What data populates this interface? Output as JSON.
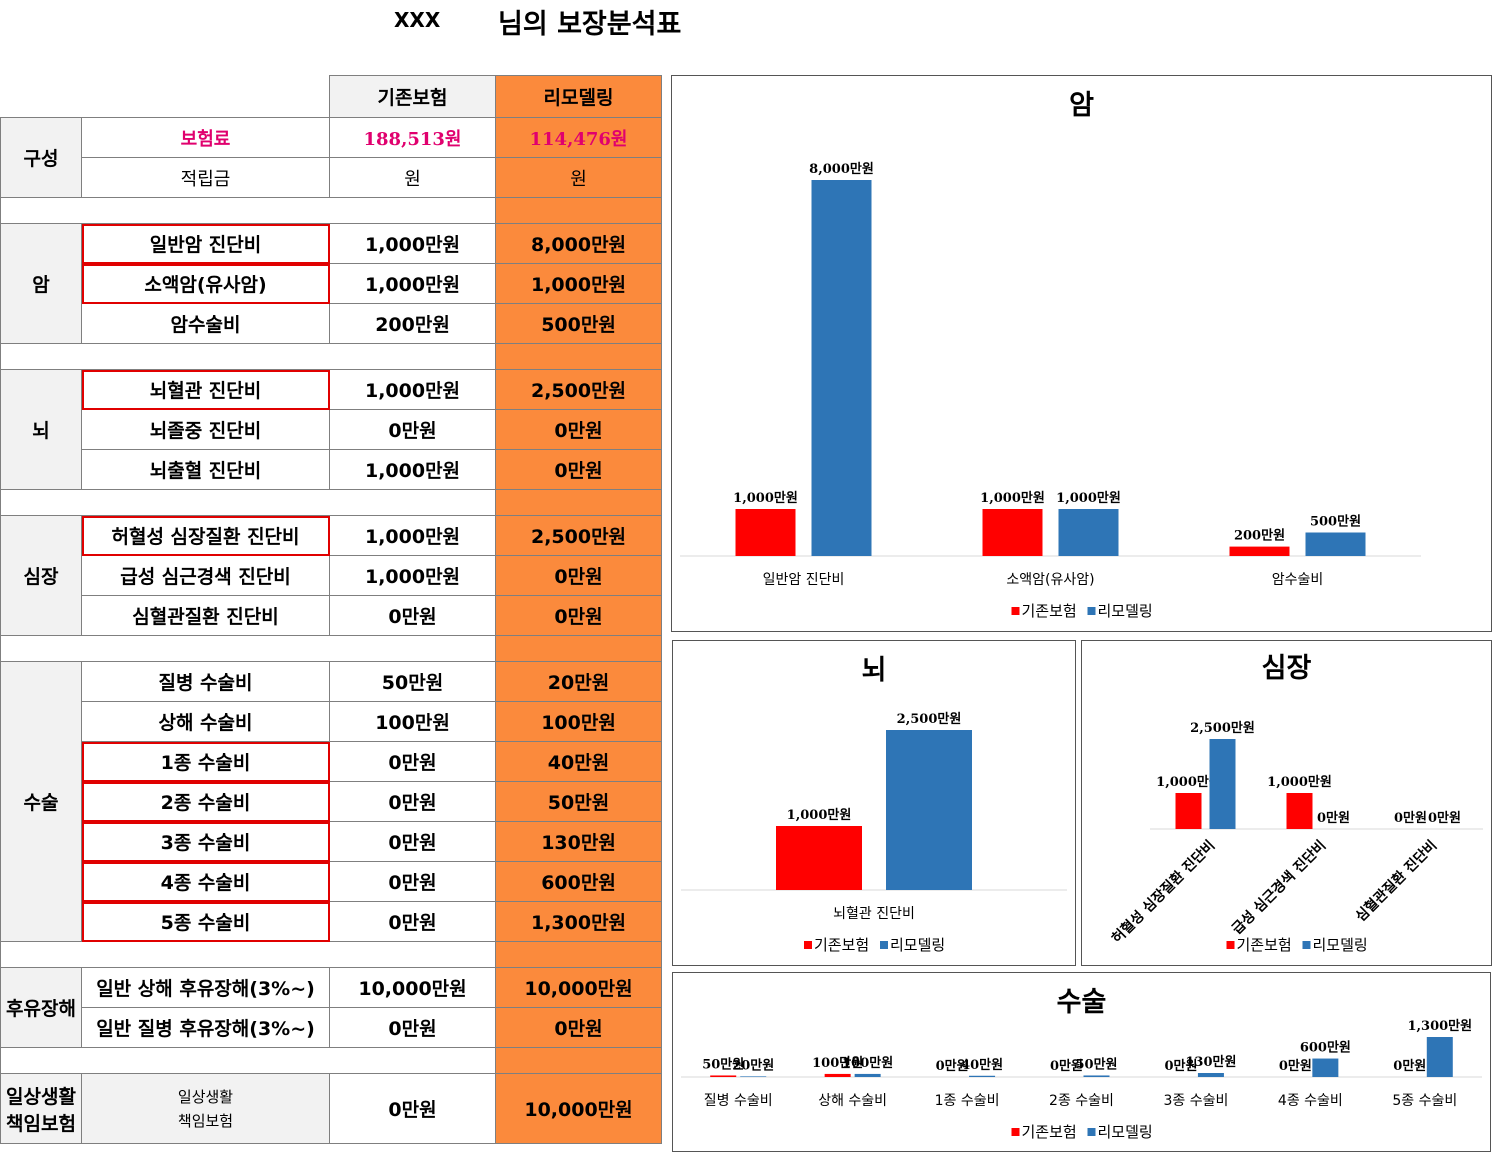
{
  "header": {
    "name": "XXX",
    "title": "님의 보장분석표"
  },
  "table": {
    "col_existing": "기존보험",
    "col_remodel": "리모델링",
    "groups": [
      {
        "category": "구성",
        "rows": [
          {
            "label": "보험료",
            "existing": "188,513원",
            "remodel": "114,476원"
          },
          {
            "label": "적립금",
            "existing": "원",
            "remodel": "원"
          }
        ]
      },
      {
        "category": "암",
        "rows": [
          {
            "label": "일반암 진단비",
            "existing": "1,000만원",
            "remodel": "8,000만원"
          },
          {
            "label": "소액암(유사암)",
            "existing": "1,000만원",
            "remodel": "1,000만원"
          },
          {
            "label": "암수술비",
            "existing": "200만원",
            "remodel": "500만원"
          }
        ]
      },
      {
        "category": "뇌",
        "rows": [
          {
            "label": "뇌혈관 진단비",
            "existing": "1,000만원",
            "remodel": "2,500만원"
          },
          {
            "label": "뇌졸중 진단비",
            "existing": "0만원",
            "remodel": "0만원"
          },
          {
            "label": "뇌출혈 진단비",
            "existing": "1,000만원",
            "remodel": "0만원"
          }
        ]
      },
      {
        "category": "심장",
        "rows": [
          {
            "label": "허혈성 심장질환 진단비",
            "existing": "1,000만원",
            "remodel": "2,500만원"
          },
          {
            "label": "급성 심근경색 진단비",
            "existing": "1,000만원",
            "remodel": "0만원"
          },
          {
            "label": "심혈관질환 진단비",
            "existing": "0만원",
            "remodel": "0만원"
          }
        ]
      },
      {
        "category": "수술",
        "rows": [
          {
            "label": "질병 수술비",
            "existing": "50만원",
            "remodel": "20만원"
          },
          {
            "label": "상해 수술비",
            "existing": "100만원",
            "remodel": "100만원"
          },
          {
            "label": "1종 수술비",
            "existing": "0만원",
            "remodel": "40만원"
          },
          {
            "label": "2종 수술비",
            "existing": "0만원",
            "remodel": "50만원"
          },
          {
            "label": "3종 수술비",
            "existing": "0만원",
            "remodel": "130만원"
          },
          {
            "label": "4종 수술비",
            "existing": "0만원",
            "remodel": "600만원"
          },
          {
            "label": "5종 수술비",
            "existing": "0만원",
            "remodel": "1,300만원"
          }
        ]
      },
      {
        "category": "후유장해",
        "rows": [
          {
            "label": "일반 상해 후유장해(3%~)",
            "existing": "10,000만원",
            "remodel": "10,000만원"
          },
          {
            "label": "일반 질병 후유장해(3%~)",
            "existing": "0만원",
            "remodel": "0만원"
          }
        ]
      },
      {
        "category_l1": "일상생활",
        "category_l2": "책임보험",
        "rows": [
          {
            "label_l1": "일상생활",
            "label_l2": "책임보험",
            "existing": "0만원",
            "remodel": "10,000만원"
          }
        ]
      }
    ]
  },
  "colors": {
    "existing": "#ff0000",
    "remodel": "#2e75b6",
    "orange": "#fb8a3c",
    "pink": "#e0006e"
  },
  "chart_data": [
    {
      "type": "bar",
      "title": "암",
      "categories": [
        "일반암 진단비",
        "소액암(유사암)",
        "암수술비"
      ],
      "series": [
        {
          "name": "기존보험",
          "values": [
            1000,
            1000,
            200
          ]
        },
        {
          "name": "리모델링",
          "values": [
            8000,
            1000,
            500
          ]
        }
      ],
      "data_labels": [
        [
          "1,000만원",
          "1,000만원",
          "200만원"
        ],
        [
          "8,000만원",
          "1,000만원",
          "500만원"
        ]
      ],
      "legend": "bottom"
    },
    {
      "type": "bar",
      "title": "뇌",
      "categories": [
        "뇌혈관 진단비"
      ],
      "series": [
        {
          "name": "기존보험",
          "values": [
            1000
          ]
        },
        {
          "name": "리모델링",
          "values": [
            2500
          ]
        }
      ],
      "data_labels": [
        [
          "1,000만원"
        ],
        [
          "2,500만원"
        ]
      ],
      "legend": "bottom"
    },
    {
      "type": "bar",
      "title": "심장",
      "categories": [
        "허혈성 심장질환 진단비",
        "급성 심근경색 진단비",
        "심혈관질환 진단비"
      ],
      "series": [
        {
          "name": "기존보험",
          "values": [
            1000,
            1000,
            0
          ]
        },
        {
          "name": "리모델링",
          "values": [
            2500,
            0,
            0
          ]
        }
      ],
      "data_labels": [
        [
          "1,000만원",
          "1,000만원",
          "0만원"
        ],
        [
          "2,500만원",
          "0만원",
          "0만원"
        ]
      ],
      "legend": "bottom"
    },
    {
      "type": "bar",
      "title": "수술",
      "categories": [
        "질병 수술비",
        "상해 수술비",
        "1종 수술비",
        "2종 수술비",
        "3종 수술비",
        "4종 수술비",
        "5종 수술비"
      ],
      "series": [
        {
          "name": "기존보험",
          "values": [
            50,
            100,
            0,
            0,
            0,
            0,
            0
          ]
        },
        {
          "name": "리모델링",
          "values": [
            20,
            100,
            40,
            50,
            130,
            600,
            1300
          ]
        }
      ],
      "data_labels": [
        [
          "50만원",
          "100만원",
          "0만원",
          "0만원",
          "0만원",
          "0만원",
          "0만원"
        ],
        [
          "20만원",
          "100만원",
          "40만원",
          "50만원",
          "130만원",
          "600만원",
          "1,300만원"
        ]
      ],
      "legend": "bottom"
    }
  ]
}
